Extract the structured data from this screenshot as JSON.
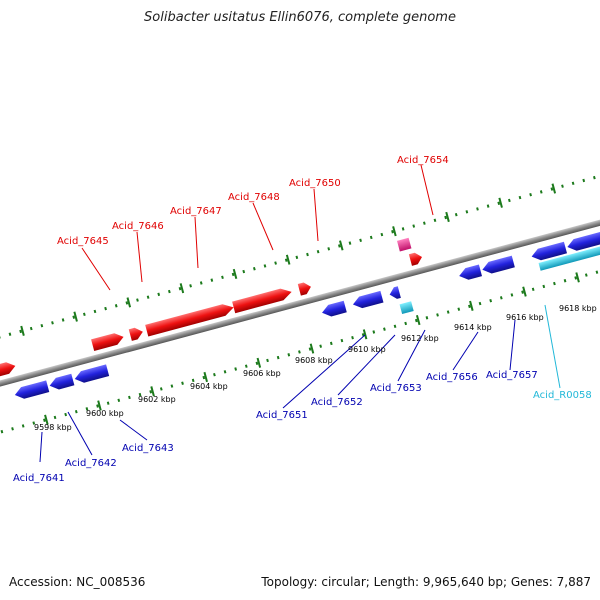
{
  "title": "Solibacter usitatus Ellin6076, complete genome",
  "footer": {
    "accession": "Accession: NC_008536",
    "summary": "Topology: circular; Length: 9,965,640 bp; Genes: 7,887"
  },
  "colors": {
    "forward_gene": "#ee1111",
    "reverse_gene": "#2222dd",
    "forward_rna": "#e0207f",
    "reverse_rna": "#20c8d8",
    "backbone": "#888888",
    "tick": "#1c7a1c"
  },
  "genes": {
    "forward": [
      {
        "locus": "Acid_7645",
        "label": "Acid_7645"
      },
      {
        "locus": "Acid_7646",
        "label": "Acid_7646"
      },
      {
        "locus": "Acid_7647",
        "label": "Acid_7647"
      },
      {
        "locus": "Acid_7648",
        "label": "Acid_7648"
      },
      {
        "locus": "Acid_7650",
        "label": "Acid_7650"
      },
      {
        "locus": "Acid_7654",
        "label": "Acid_7654"
      }
    ],
    "reverse": [
      {
        "locus": "Acid_7641",
        "label": "Acid_7641"
      },
      {
        "locus": "Acid_7642",
        "label": "Acid_7642"
      },
      {
        "locus": "Acid_7643",
        "label": "Acid_7643"
      },
      {
        "locus": "Acid_7651",
        "label": "Acid_7651"
      },
      {
        "locus": "Acid_7652",
        "label": "Acid_7652"
      },
      {
        "locus": "Acid_7653",
        "label": "Acid_7653"
      },
      {
        "locus": "Acid_7656",
        "label": "Acid_7656"
      },
      {
        "locus": "Acid_7657",
        "label": "Acid_7657"
      },
      {
        "locus": "Acid_R0058",
        "label": "Acid_R0058"
      }
    ]
  },
  "axis_ticks": [
    "9598 kbp",
    "9600 kbp",
    "9602 kbp",
    "9604 kbp",
    "9606 kbp",
    "9608 kbp",
    "9610 kbp",
    "9612 kbp",
    "9614 kbp",
    "9616 kbp",
    "9618 kbp"
  ]
}
